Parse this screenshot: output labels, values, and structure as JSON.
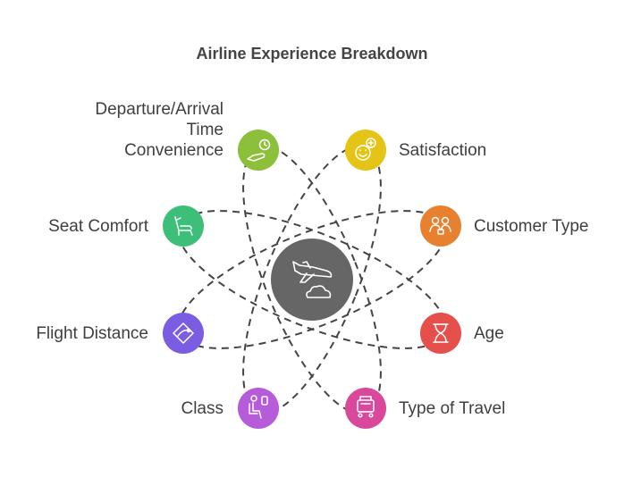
{
  "title": "Airline Experience Breakdown",
  "center": {
    "icon": "airplane-takeoff-cloud-icon",
    "color": "#666666"
  },
  "nodes": [
    {
      "id": "departure",
      "label": "Departure/Arrival\nTime\nConvenience",
      "color": "#8cbf3a",
      "icon": "airplane-clock-icon"
    },
    {
      "id": "satisfaction",
      "label": "Satisfaction",
      "color": "#e4c417",
      "icon": "smiley-plus-icon"
    },
    {
      "id": "customer-type",
      "label": "Customer Type",
      "color": "#e7812f",
      "icon": "people-group-icon"
    },
    {
      "id": "age",
      "label": "Age",
      "color": "#e5504c",
      "icon": "hourglass-icon"
    },
    {
      "id": "type-of-travel",
      "label": "Type of Travel",
      "color": "#d9489b",
      "icon": "luggage-cart-icon"
    },
    {
      "id": "class",
      "label": "Class",
      "color": "#b65bd9",
      "icon": "seated-passenger-icon"
    },
    {
      "id": "flight-distance",
      "label": "Flight Distance",
      "color": "#7a5de0",
      "icon": "route-map-icon"
    },
    {
      "id": "seat-comfort",
      "label": "Seat Comfort",
      "color": "#3dbf7a",
      "icon": "reclining-seat-icon"
    }
  ]
}
